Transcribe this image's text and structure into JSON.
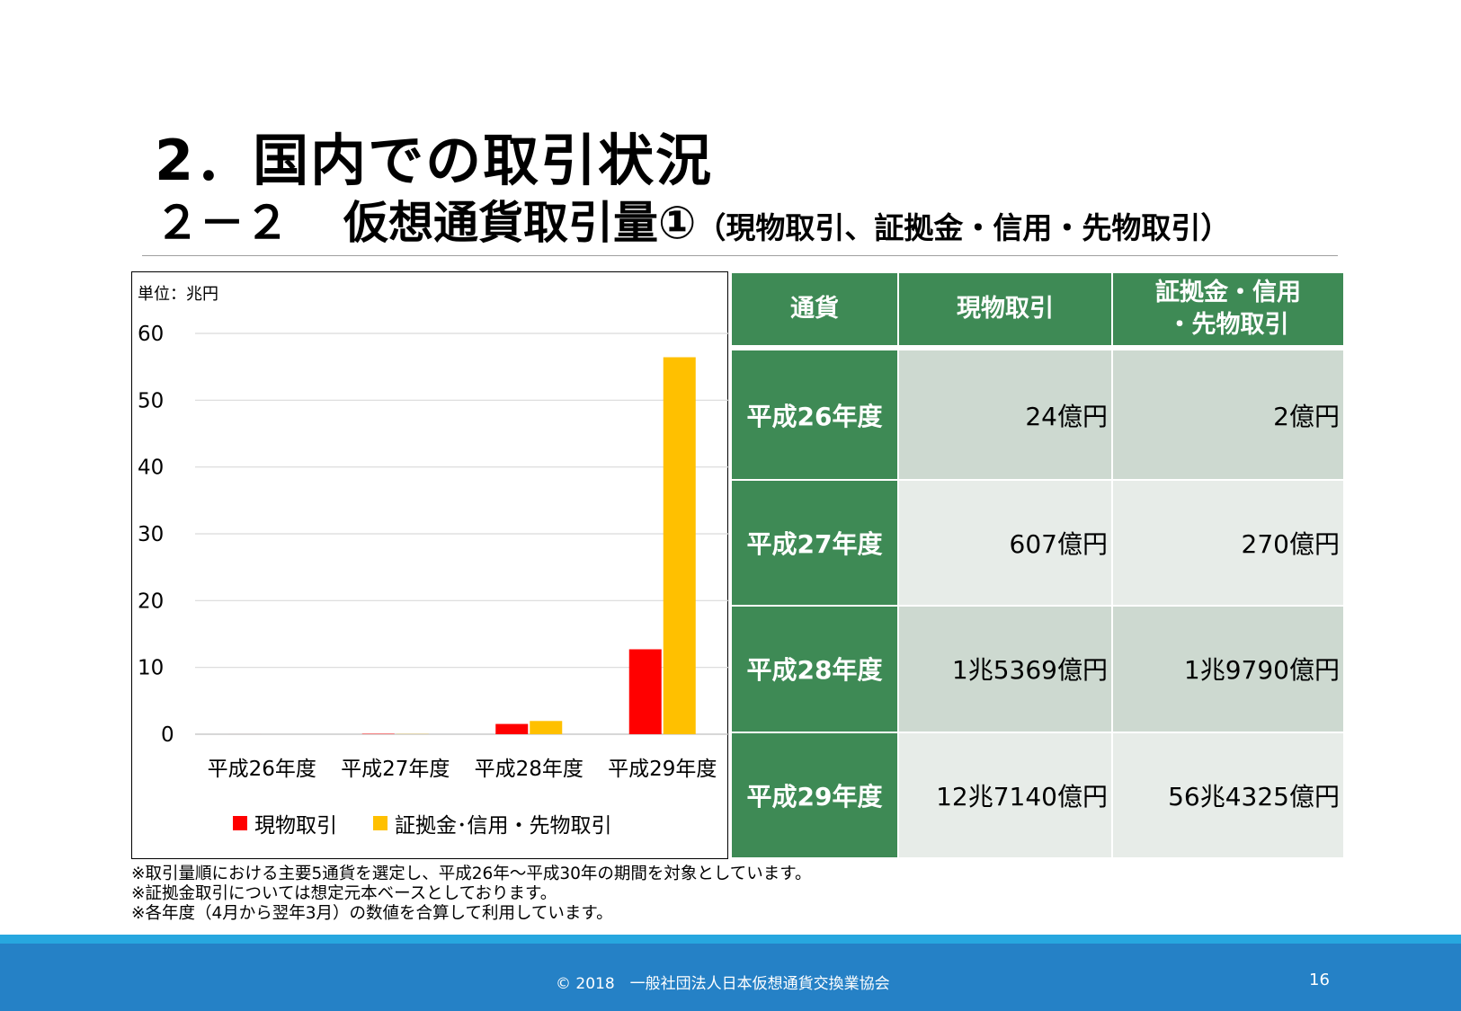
{
  "title": {
    "line1": "2．国内での取引状況",
    "line2_num": "２－２",
    "line2_main": "仮想通貨取引量①",
    "line2_sub": "（現物取引、証拠金・信用・先物取引）"
  },
  "chart_data": {
    "type": "bar",
    "unit_label": "単位：兆円",
    "categories": [
      "平成26年度",
      "平成27年度",
      "平成28年度",
      "平成29年度"
    ],
    "series": [
      {
        "name": "現物取引",
        "color": "#ff0000",
        "values": [
          0.0024,
          0.0607,
          1.5369,
          12.714
        ]
      },
      {
        "name": "証拠金･信用・先物取引",
        "color": "#ffc000",
        "values": [
          0.0002,
          0.027,
          1.979,
          56.4325
        ]
      }
    ],
    "ylim": [
      0,
      60
    ],
    "yticks": [
      "0",
      "10",
      "20",
      "30",
      "40",
      "50",
      "60"
    ],
    "grid": true,
    "legend_position": "bottom"
  },
  "table": {
    "headers": [
      "通貨",
      "現物取引",
      "証拠金・信用",
      "・先物取引"
    ],
    "rows": [
      {
        "year": "平成26年度",
        "spot": "24億円",
        "margin": "2億円"
      },
      {
        "year": "平成27年度",
        "spot": "607億円",
        "margin": "270億円"
      },
      {
        "year": "平成28年度",
        "spot": "1兆5369億円",
        "margin": "1兆9790億円"
      },
      {
        "year": "平成29年度",
        "spot": "12兆7140億円",
        "margin": "56兆4325億円"
      }
    ]
  },
  "notes": [
    "※取引量順における主要5通貨を選定し、平成26年～平成30年の期間を対象としています。",
    "※証拠金取引については想定元本ベースとしております。",
    "※各年度（4月から翌年3月）の数値を合算して利用しています。"
  ],
  "footer": {
    "copyright": "© 2018　一般社団法人日本仮想通貨交換業協会",
    "page_number": "16"
  }
}
